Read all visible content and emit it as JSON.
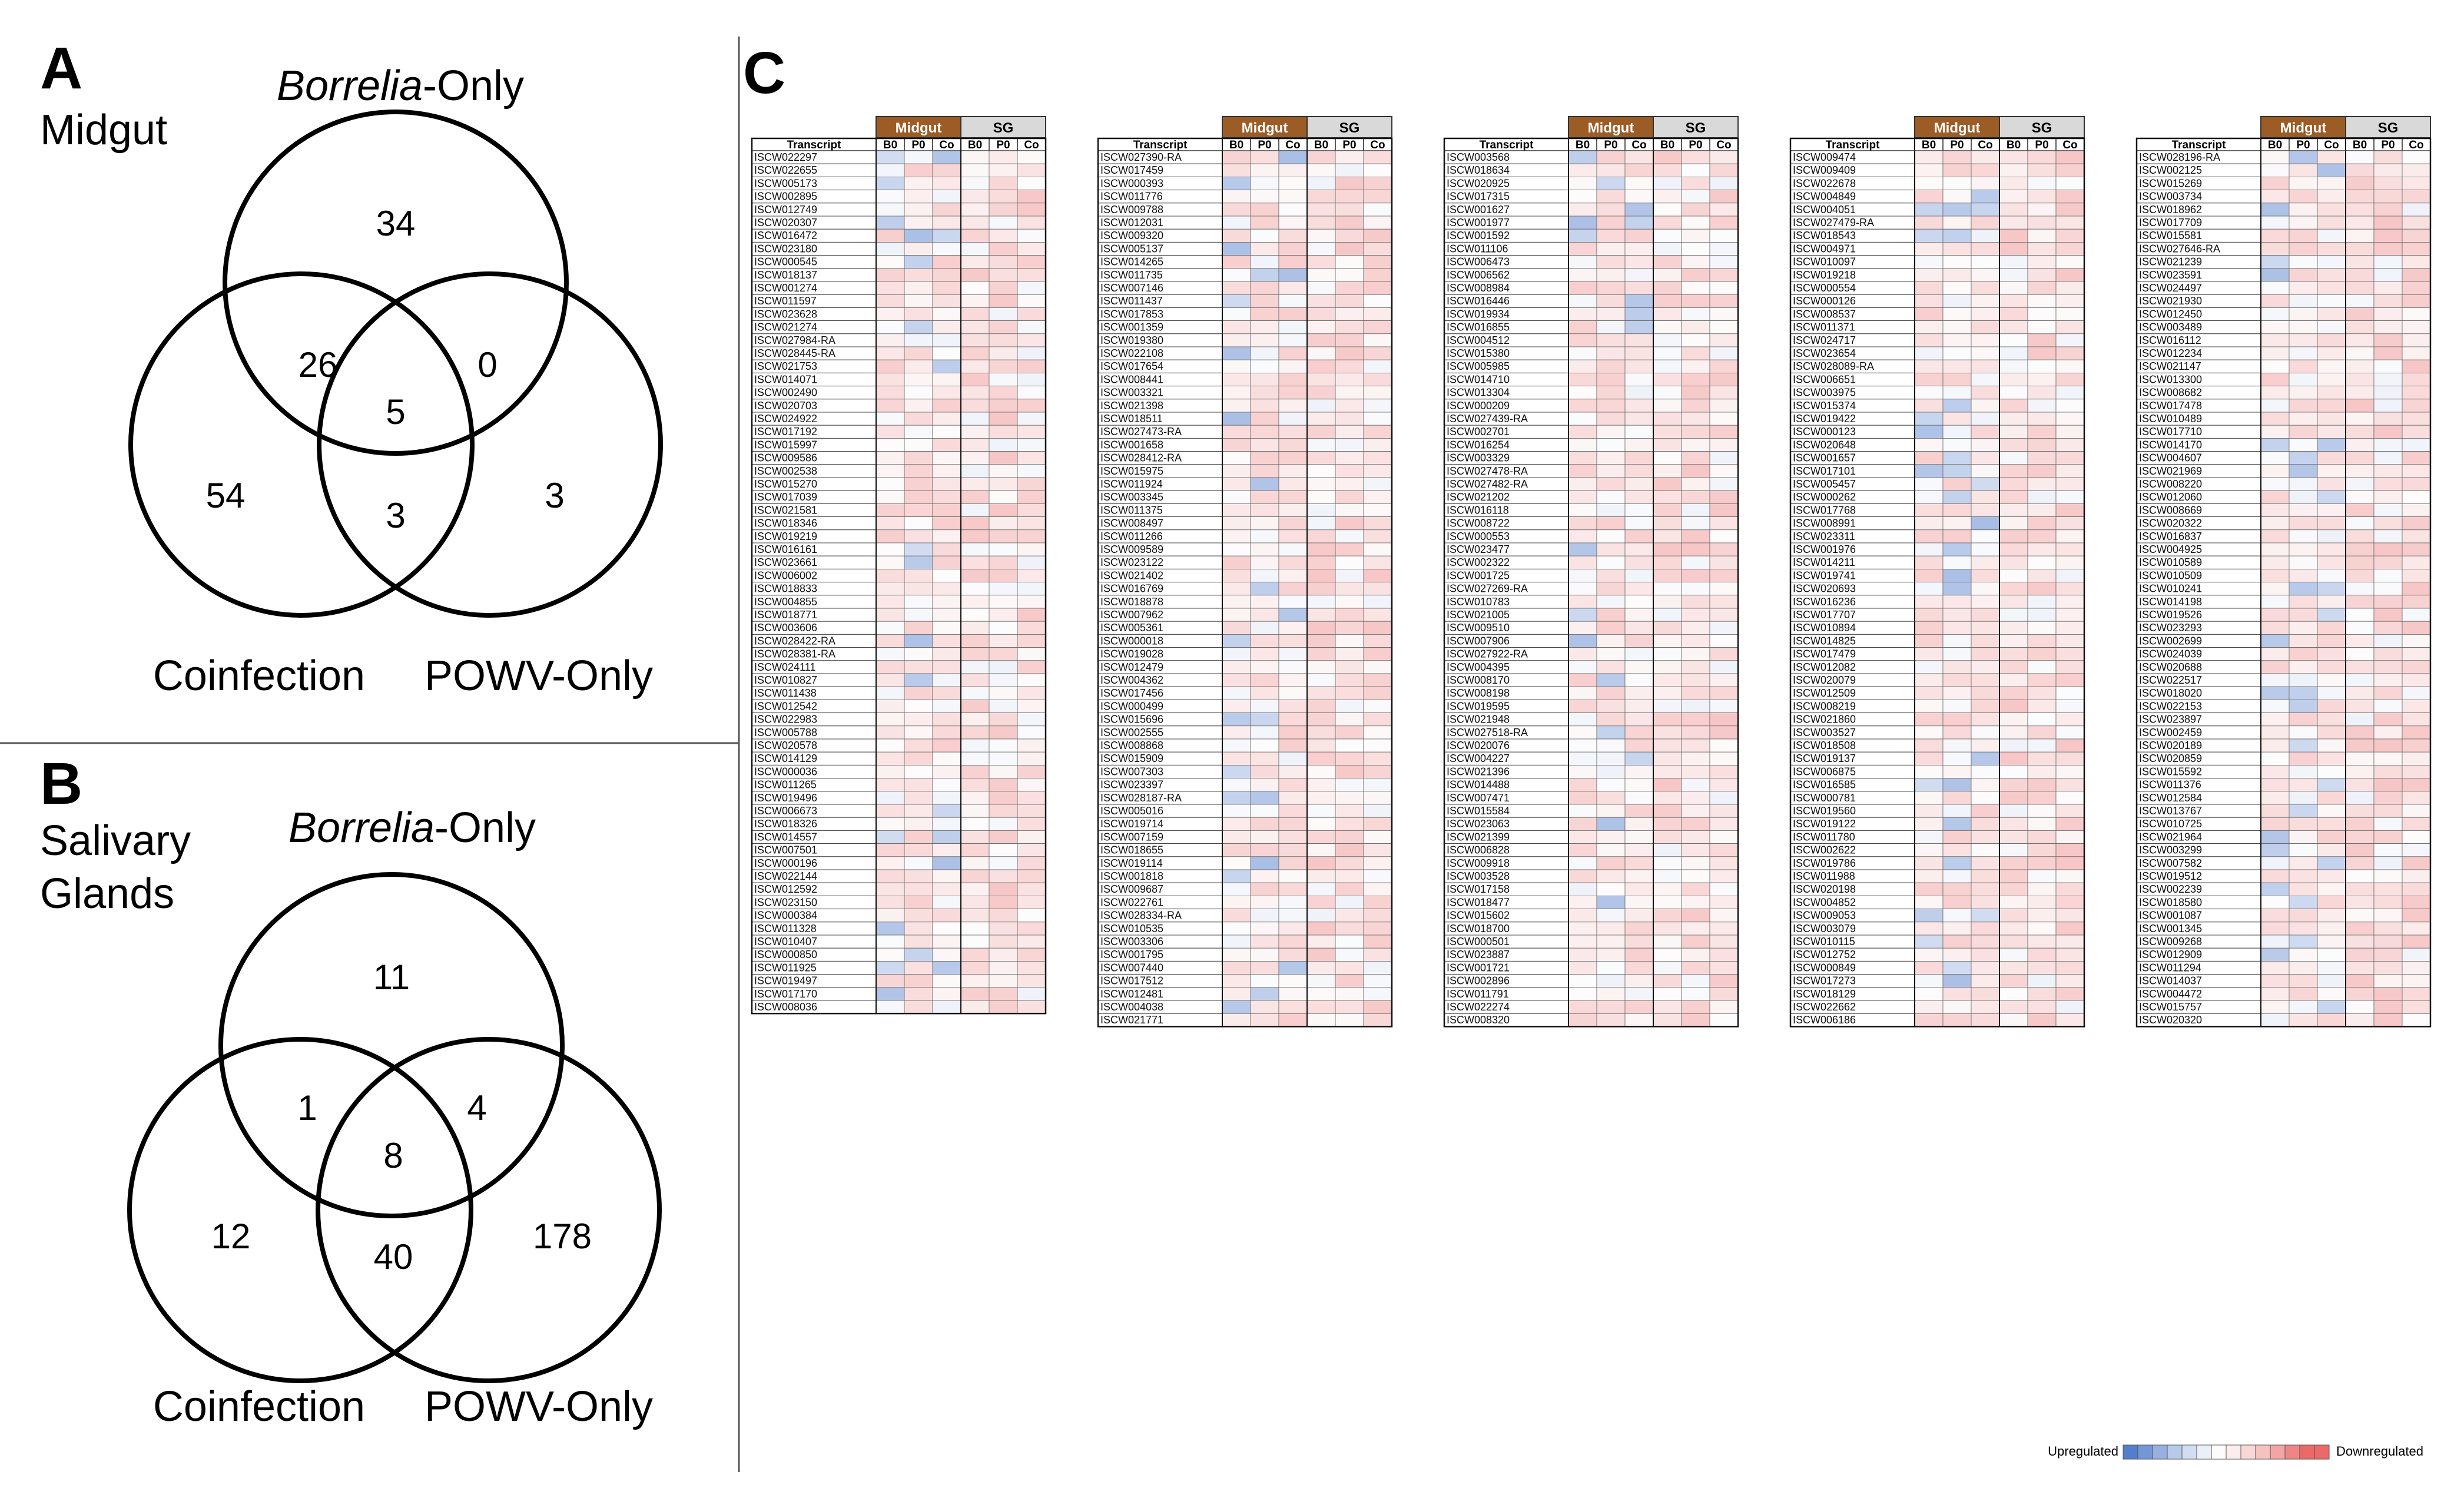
{
  "panel_a": {
    "letter": "A",
    "title": "Midgut",
    "labels": {
      "top": "-Only",
      "top_italic": "Borrelia",
      "left": "Coinfection",
      "right": "POWV-Only"
    },
    "counts": {
      "b_only": "34",
      "b_c": "26",
      "b_p": "0",
      "b_c_p": "5",
      "c_only": "54",
      "c_p": "3",
      "p_only": "3"
    }
  },
  "panel_b": {
    "letter": "B",
    "title_line1": "Salivary",
    "title_line2": "Glands",
    "labels": {
      "top": "-Only",
      "top_italic": "Borrelia",
      "left": "Coinfection",
      "right": "POWV-Only"
    },
    "counts": {
      "b_only": "11",
      "b_c": "1",
      "b_p": "4",
      "b_c_p": "8",
      "c_only": "12",
      "c_p": "40",
      "p_only": "178"
    }
  },
  "panel_c": {
    "letter": "C",
    "group_headers": [
      "Midgut",
      "SG"
    ],
    "column_headers": [
      "Transcript",
      "B0",
      "P0",
      "Co",
      "B0",
      "P0",
      "Co"
    ],
    "colors": {
      "midgut_header": "#9b5c26",
      "sg_header": "#d9d9d9",
      "up": "#5b84d0",
      "down": "#ec6d6d"
    },
    "legend": {
      "up_label": "Upregulated",
      "down_label": "Downregulated"
    },
    "tables": [
      [
        "ISCW022297",
        "ISCW022655",
        "ISCW005173",
        "ISCW002895",
        "ISCW012749",
        "ISCW020307",
        "ISCW016472",
        "ISCW023180",
        "ISCW000545",
        "ISCW018137",
        "ISCW001274",
        "ISCW011597",
        "ISCW023628",
        "ISCW021274",
        "ISCW027984-RA",
        "ISCW028445-RA",
        "ISCW021753",
        "ISCW014071",
        "ISCW002490",
        "ISCW020703",
        "ISCW024922",
        "ISCW017192",
        "ISCW015997",
        "ISCW009586",
        "ISCW002538",
        "ISCW015270",
        "ISCW017039",
        "ISCW021581",
        "ISCW018346",
        "ISCW019219",
        "ISCW016161",
        "ISCW023661",
        "ISCW006002",
        "ISCW018833",
        "ISCW004855",
        "ISCW018771",
        "ISCW003606",
        "ISCW028422-RA",
        "ISCW028381-RA",
        "ISCW024111",
        "ISCW010827",
        "ISCW011438",
        "ISCW012542",
        "ISCW022983",
        "ISCW005788",
        "ISCW020578",
        "ISCW014129",
        "ISCW000036",
        "ISCW011265",
        "ISCW019496",
        "ISCW006673",
        "ISCW018326",
        "ISCW014557",
        "ISCW007501",
        "ISCW000196",
        "ISCW022144",
        "ISCW012592",
        "ISCW023150",
        "ISCW000384",
        "ISCW011328",
        "ISCW010407",
        "ISCW000850",
        "ISCW011925",
        "ISCW019497",
        "ISCW017170",
        "ISCW008036"
      ],
      [
        "ISCW027390-RA",
        "ISCW017459",
        "ISCW000393",
        "ISCW011776",
        "ISCW009788",
        "ISCW012031",
        "ISCW009320",
        "ISCW005137",
        "ISCW014265",
        "ISCW011735",
        "ISCW007146",
        "ISCW011437",
        "ISCW017853",
        "ISCW001359",
        "ISCW019380",
        "ISCW022108",
        "ISCW017654",
        "ISCW008441",
        "ISCW003321",
        "ISCW021398",
        "ISCW018511",
        "ISCW027473-RA",
        "ISCW001658",
        "ISCW028412-RA",
        "ISCW015975",
        "ISCW011924",
        "ISCW003345",
        "ISCW011375",
        "ISCW008497",
        "ISCW011266",
        "ISCW009589",
        "ISCW023122",
        "ISCW021402",
        "ISCW016769",
        "ISCW018878",
        "ISCW007962",
        "ISCW005361",
        "ISCW000018",
        "ISCW019028",
        "ISCW012479",
        "ISCW004362",
        "ISCW017456",
        "ISCW000499",
        "ISCW015696",
        "ISCW002555",
        "ISCW008868",
        "ISCW015909",
        "ISCW007303",
        "ISCW023397",
        "ISCW028187-RA",
        "ISCW005016",
        "ISCW019714",
        "ISCW007159",
        "ISCW018655",
        "ISCW019114",
        "ISCW001818",
        "ISCW009687",
        "ISCW022761",
        "ISCW028334-RA",
        "ISCW010535",
        "ISCW003306",
        "ISCW001795",
        "ISCW007440",
        "ISCW017512",
        "ISCW012481",
        "ISCW004038",
        "ISCW021771"
      ],
      [
        "ISCW003568",
        "ISCW018634",
        "ISCW020925",
        "ISCW017315",
        "ISCW001627",
        "ISCW001977",
        "ISCW001592",
        "ISCW011106",
        "ISCW006473",
        "ISCW006562",
        "ISCW008984",
        "ISCW016446",
        "ISCW019934",
        "ISCW016855",
        "ISCW004512",
        "ISCW015380",
        "ISCW005985",
        "ISCW014710",
        "ISCW013304",
        "ISCW000209",
        "ISCW027439-RA",
        "ISCW002701",
        "ISCW016254",
        "ISCW003329",
        "ISCW027478-RA",
        "ISCW027482-RA",
        "ISCW021202",
        "ISCW016118",
        "ISCW008722",
        "ISCW000553",
        "ISCW023477",
        "ISCW002322",
        "ISCW001725",
        "ISCW027269-RA",
        "ISCW010783",
        "ISCW021005",
        "ISCW009510",
        "ISCW007906",
        "ISCW027922-RA",
        "ISCW004395",
        "ISCW008170",
        "ISCW008198",
        "ISCW019595",
        "ISCW021948",
        "ISCW027518-RA",
        "ISCW020076",
        "ISCW004227",
        "ISCW021396",
        "ISCW014488",
        "ISCW007471",
        "ISCW015584",
        "ISCW023063",
        "ISCW021399",
        "ISCW006828",
        "ISCW009918",
        "ISCW003528",
        "ISCW017158",
        "ISCW018477",
        "ISCW015602",
        "ISCW018700",
        "ISCW000501",
        "ISCW023887",
        "ISCW001721",
        "ISCW002896",
        "ISCW011791",
        "ISCW022274",
        "ISCW008320"
      ],
      [
        "ISCW009474",
        "ISCW009409",
        "ISCW022678",
        "ISCW004849",
        "ISCW004051",
        "ISCW027479-RA",
        "ISCW018543",
        "ISCW004971",
        "ISCW010097",
        "ISCW019218",
        "ISCW000554",
        "ISCW000126",
        "ISCW008537",
        "ISCW011371",
        "ISCW024717",
        "ISCW023654",
        "ISCW028089-RA",
        "ISCW006651",
        "ISCW003975",
        "ISCW015374",
        "ISCW019422",
        "ISCW000123",
        "ISCW020648",
        "ISCW001657",
        "ISCW017101",
        "ISCW005457",
        "ISCW000262",
        "ISCW017768",
        "ISCW008991",
        "ISCW023311",
        "ISCW001976",
        "ISCW014211",
        "ISCW019741",
        "ISCW020693",
        "ISCW016236",
        "ISCW017707",
        "ISCW010894",
        "ISCW014825",
        "ISCW017479",
        "ISCW012082",
        "ISCW020079",
        "ISCW012509",
        "ISCW008219",
        "ISCW021860",
        "ISCW003527",
        "ISCW018508",
        "ISCW019137",
        "ISCW006875",
        "ISCW016585",
        "ISCW000781",
        "ISCW019560",
        "ISCW019122",
        "ISCW011780",
        "ISCW002622",
        "ISCW019786",
        "ISCW011988",
        "ISCW020198",
        "ISCW004852",
        "ISCW009053",
        "ISCW003079",
        "ISCW010115",
        "ISCW012752",
        "ISCW000849",
        "ISCW017273",
        "ISCW018129",
        "ISCW022662",
        "ISCW006186"
      ],
      [
        "ISCW028196-RA",
        "ISCW002125",
        "ISCW015269",
        "ISCW003734",
        "ISCW018962",
        "ISCW017709",
        "ISCW015581",
        "ISCW027646-RA",
        "ISCW021239",
        "ISCW023591",
        "ISCW024497",
        "ISCW021930",
        "ISCW012450",
        "ISCW003489",
        "ISCW016112",
        "ISCW012234",
        "ISCW021147",
        "ISCW013300",
        "ISCW008682",
        "ISCW017478",
        "ISCW010489",
        "ISCW017710",
        "ISCW014170",
        "ISCW004607",
        "ISCW021969",
        "ISCW008220",
        "ISCW012060",
        "ISCW008669",
        "ISCW020322",
        "ISCW016837",
        "ISCW004925",
        "ISCW010589",
        "ISCW010509",
        "ISCW010241",
        "ISCW014198",
        "ISCW019526",
        "ISCW023293",
        "ISCW002699",
        "ISCW024039",
        "ISCW020688",
        "ISCW022517",
        "ISCW018020",
        "ISCW022153",
        "ISCW023897",
        "ISCW002459",
        "ISCW020189",
        "ISCW020859",
        "ISCW015592",
        "ISCW011376",
        "ISCW012584",
        "ISCW013767",
        "ISCW010725",
        "ISCW021964",
        "ISCW003299",
        "ISCW007582",
        "ISCW019512",
        "ISCW002239",
        "ISCW018580",
        "ISCW001087",
        "ISCW001345",
        "ISCW009268",
        "ISCW012909",
        "ISCW011294",
        "ISCW014037",
        "ISCW004472",
        "ISCW015757",
        "ISCW020320"
      ]
    ]
  }
}
